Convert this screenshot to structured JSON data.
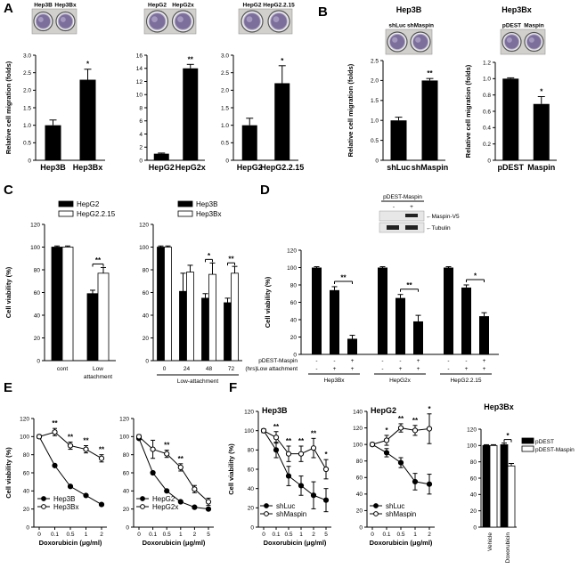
{
  "figure": {
    "panel_labels": [
      "A",
      "B",
      "C",
      "D",
      "E",
      "F"
    ]
  },
  "chart_data": [
    {
      "id": "A1",
      "type": "bar",
      "panel": "A",
      "ylabel": "Relative cell migration (folds)",
      "ylim": [
        0,
        3.0
      ],
      "yticks": [
        "0",
        "0.5",
        "1.0",
        "1.5",
        "2.0",
        "2.5",
        "3.0"
      ],
      "well_labels": [
        "Hep3B",
        "Hep3Bx"
      ],
      "categories": [
        "Hep3B",
        "Hep3Bx"
      ],
      "values": [
        1.0,
        2.3
      ],
      "errors": [
        0.15,
        0.3
      ],
      "colors": [
        "#000000",
        "#000000"
      ],
      "annotations": [
        {
          "index": 1,
          "text": "*"
        }
      ]
    },
    {
      "id": "A2",
      "type": "bar",
      "panel": "A",
      "ylim": [
        0,
        16
      ],
      "yticks": [
        "0",
        "2",
        "4",
        "6",
        "8",
        "10",
        "12",
        "14",
        "16"
      ],
      "well_labels": [
        "HepG2",
        "HepG2x"
      ],
      "categories": [
        "HepG2",
        "HepG2x"
      ],
      "values": [
        1.0,
        14.0
      ],
      "errors": [
        0.1,
        0.6
      ],
      "colors": [
        "#000000",
        "#000000"
      ],
      "annotations": [
        {
          "index": 1,
          "text": "**"
        }
      ]
    },
    {
      "id": "A3",
      "type": "bar",
      "panel": "A",
      "ylim": [
        0,
        3.0
      ],
      "yticks": [
        "0",
        "0.5",
        "1.0",
        "1.5",
        "2.0",
        "2.5",
        "3.0"
      ],
      "well_labels": [
        "HepG2",
        "HepG2.2.15"
      ],
      "categories": [
        "HepG2",
        "HepG2.2.15"
      ],
      "values": [
        1.0,
        2.2
      ],
      "errors": [
        0.2,
        0.5
      ],
      "colors": [
        "#000000",
        "#000000"
      ],
      "annotations": [
        {
          "index": 1,
          "text": "*"
        }
      ]
    },
    {
      "id": "B1",
      "type": "bar",
      "panel": "B",
      "title": "Hep3B",
      "ylabel": "Relative cell migration (folds)",
      "ylim": [
        0,
        2.5
      ],
      "yticks": [
        "0",
        "0.5",
        "1.0",
        "1.5",
        "2.0",
        "2.5"
      ],
      "well_labels": [
        "shLuc",
        "shMaspin"
      ],
      "categories": [
        "shLuc",
        "shMaspin"
      ],
      "values": [
        1.0,
        2.0
      ],
      "errors": [
        0.08,
        0.05
      ],
      "colors": [
        "#000000",
        "#000000"
      ],
      "annotations": [
        {
          "index": 1,
          "text": "**"
        }
      ]
    },
    {
      "id": "B2",
      "type": "bar",
      "panel": "B",
      "title": "Hep3Bx",
      "ylabel": "Relative cell migration (folds)",
      "ylim": [
        0,
        1.2
      ],
      "yticks": [
        "0",
        "0.2",
        "0.4",
        "0.6",
        "0.8",
        "1.0",
        "1.2"
      ],
      "well_labels": [
        "pDEST",
        "Maspin"
      ],
      "categories": [
        "pDEST",
        "Maspin"
      ],
      "values": [
        1.0,
        0.69
      ],
      "errors": [
        0.01,
        0.09
      ],
      "colors": [
        "#000000",
        "#000000"
      ],
      "annotations": [
        {
          "index": 1,
          "text": "*"
        }
      ]
    },
    {
      "id": "C1",
      "type": "bar",
      "panel": "C",
      "ylabel": "Cell viability (%)",
      "ylim": [
        0,
        120
      ],
      "yticks": [
        "0",
        "20",
        "40",
        "60",
        "80",
        "100",
        "120"
      ],
      "legend": [
        "HepG2",
        "HepG2.2.15"
      ],
      "categories": [
        "cont",
        "Low attachment"
      ],
      "series": [
        {
          "name": "HepG2",
          "values": [
            100,
            59
          ],
          "errors": [
            1,
            3
          ],
          "color": "#000000"
        },
        {
          "name": "HepG2.2.15",
          "values": [
            100,
            77
          ],
          "errors": [
            1,
            5
          ],
          "color": "#ffffff"
        }
      ],
      "annotations": [
        {
          "group": 1,
          "text": "**"
        }
      ]
    },
    {
      "id": "C2",
      "type": "bar",
      "panel": "C",
      "ylim": [
        0,
        120
      ],
      "yticks": [
        "0",
        "20",
        "40",
        "60",
        "80",
        "100",
        "120"
      ],
      "legend": [
        "Hep3B",
        "Hep3Bx"
      ],
      "categories": [
        "0",
        "24",
        "48",
        "72"
      ],
      "xunit": "(hrs)",
      "xlabel": "Low-attachment",
      "series": [
        {
          "name": "Hep3B",
          "values": [
            100,
            61,
            55,
            51
          ],
          "errors": [
            1,
            16,
            4,
            4
          ],
          "color": "#000000"
        },
        {
          "name": "Hep3Bx",
          "values": [
            100,
            78,
            76,
            77
          ],
          "errors": [
            1,
            6,
            10,
            6
          ],
          "color": "#ffffff"
        }
      ],
      "annotations": [
        {
          "group": 2,
          "text": "*"
        },
        {
          "group": 3,
          "text": "**"
        }
      ]
    },
    {
      "id": "D1",
      "type": "bar",
      "panel": "D",
      "ylabel": "Cell viability (%)",
      "ylim": [
        0,
        120
      ],
      "yticks": [
        "0",
        "20",
        "40",
        "60",
        "80",
        "100",
        "120"
      ],
      "blot": {
        "header": "pDEST-Maspin",
        "signs": [
          "-",
          "+"
        ],
        "bands": [
          "Maspin-V5",
          "Tubulin"
        ]
      },
      "row_labels": [
        "pDEST-Maspin",
        "Low attachment"
      ],
      "treatment_rows": [
        [
          "-",
          "-",
          "+"
        ],
        [
          "-",
          "+",
          "+"
        ]
      ],
      "categories": [
        "Hep3Bx",
        "HepG2x",
        "HepG2.2.15"
      ],
      "values": [
        [
          100,
          74,
          18
        ],
        [
          100,
          65,
          38
        ],
        [
          100,
          77,
          44
        ]
      ],
      "errors": [
        [
          1,
          4,
          4
        ],
        [
          1,
          4,
          7
        ],
        [
          1,
          3,
          4
        ]
      ],
      "colors": [
        "#000000"
      ],
      "annotations": [
        {
          "group": 0,
          "text": "**"
        },
        {
          "group": 1,
          "text": "**"
        },
        {
          "group": 2,
          "text": "*"
        }
      ]
    },
    {
      "id": "E1",
      "type": "line",
      "panel": "E",
      "ylabel": "Cell viability (%)",
      "xlabel": "Doxorubicin (μg/ml)",
      "ylim": [
        0,
        120
      ],
      "yticks": [
        "0",
        "20",
        "40",
        "60",
        "80",
        "100",
        "120"
      ],
      "x": [
        "0",
        "0.1",
        "0.5",
        "1",
        "2"
      ],
      "series": [
        {
          "name": "Hep3B",
          "values": [
            100,
            68,
            45,
            35,
            25
          ],
          "marker": "filled"
        },
        {
          "name": "Hep3Bx",
          "values": [
            100,
            105,
            90,
            86,
            76
          ],
          "errors": [
            2,
            4,
            4,
            4,
            4
          ],
          "marker": "open"
        }
      ],
      "annotations": [
        {
          "xi": 1,
          "text": "**"
        },
        {
          "xi": 2,
          "text": "**"
        },
        {
          "xi": 3,
          "text": "**"
        },
        {
          "xi": 4,
          "text": "**"
        }
      ]
    },
    {
      "id": "E2",
      "type": "line",
      "panel": "E",
      "xlabel": "Doxorubicin (μg/ml)",
      "ylim": [
        0,
        120
      ],
      "yticks": [
        "0",
        "20",
        "40",
        "60",
        "80",
        "100",
        "120"
      ],
      "x": [
        "0",
        "0.1",
        "0.5",
        "1",
        "2",
        "5"
      ],
      "series": [
        {
          "name": "HepG2",
          "values": [
            98,
            60,
            40,
            28,
            22,
            20
          ],
          "marker": "filled"
        },
        {
          "name": "HepG2x",
          "values": [
            100,
            86,
            81,
            66,
            42,
            28
          ],
          "errors": [
            2,
            10,
            4,
            4,
            4,
            4
          ],
          "marker": "open"
        }
      ],
      "annotations": [
        {
          "xi": 2,
          "text": "**"
        },
        {
          "xi": 3,
          "text": "**"
        }
      ]
    },
    {
      "id": "F1",
      "type": "line",
      "panel": "F",
      "title": "Hep3B",
      "ylabel": "Cell viability (%)",
      "xlabel": "Doxorubicin (μg/ml)",
      "ylim": [
        0,
        120
      ],
      "yticks": [
        "0",
        "20",
        "40",
        "60",
        "80",
        "100",
        "120"
      ],
      "x": [
        "0",
        "0.1",
        "0.5",
        "1",
        "2",
        "5"
      ],
      "series": [
        {
          "name": "shLuc",
          "values": [
            100,
            80,
            53,
            43,
            33,
            28
          ],
          "errors": [
            2,
            8,
            10,
            10,
            14,
            12
          ],
          "marker": "filled"
        },
        {
          "name": "shMaspin",
          "values": [
            100,
            93,
            76,
            76,
            82,
            60
          ],
          "errors": [
            2,
            6,
            8,
            8,
            10,
            10
          ],
          "marker": "open"
        }
      ],
      "annotations": [
        {
          "xi": 1,
          "text": "**"
        },
        {
          "xi": 2,
          "text": "**"
        },
        {
          "xi": 3,
          "text": "**"
        },
        {
          "xi": 4,
          "text": "**"
        },
        {
          "xi": 5,
          "text": "*"
        }
      ]
    },
    {
      "id": "F2",
      "type": "line",
      "panel": "F",
      "title": "HepG2",
      "xlabel": "Doxorubicin (μg/ml)",
      "ylim": [
        0,
        140
      ],
      "yticks": [
        "0",
        "20",
        "40",
        "60",
        "80",
        "100",
        "120",
        "140"
      ],
      "x": [
        "0",
        "0.1",
        "0.5",
        "1",
        "2"
      ],
      "series": [
        {
          "name": "shLuc",
          "values": [
            100,
            90,
            78,
            55,
            52
          ],
          "errors": [
            2,
            5,
            6,
            10,
            12
          ],
          "marker": "filled"
        },
        {
          "name": "shMaspin",
          "values": [
            100,
            105,
            120,
            117,
            119
          ],
          "errors": [
            2,
            6,
            5,
            6,
            18
          ],
          "marker": "open"
        }
      ],
      "annotations": [
        {
          "xi": 1,
          "text": "*"
        },
        {
          "xi": 2,
          "text": "**"
        },
        {
          "xi": 3,
          "text": "**"
        },
        {
          "xi": 4,
          "text": "*"
        }
      ]
    },
    {
      "id": "F3",
      "type": "bar",
      "panel": "F",
      "title": "Hep3Bx",
      "ylim": [
        0,
        120
      ],
      "yticks": [
        "0",
        "20",
        "40",
        "60",
        "80",
        "100",
        "120"
      ],
      "legend": [
        "pDEST",
        "pDEST-Maspin"
      ],
      "categories": [
        "Vehicle",
        "Doxorubicin"
      ],
      "series": [
        {
          "name": "pDEST",
          "values": [
            100,
            101
          ],
          "errors": [
            1,
            2
          ],
          "color": "#000000"
        },
        {
          "name": "pDEST-Maspin",
          "values": [
            100,
            75
          ],
          "errors": [
            1,
            3
          ],
          "color": "#ffffff"
        }
      ],
      "annotations": [
        {
          "group": 1,
          "text": "*"
        }
      ]
    }
  ]
}
